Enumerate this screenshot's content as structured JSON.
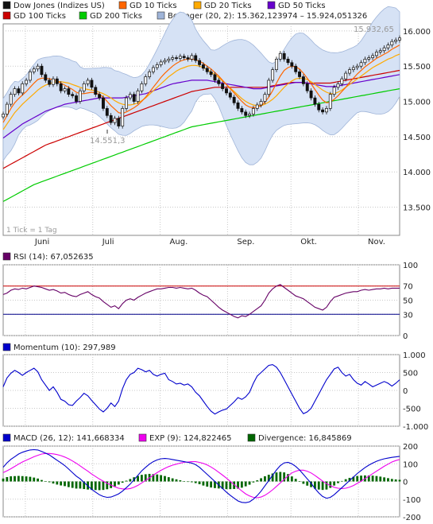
{
  "colors": {
    "price": "#111111",
    "gd10": "#ff6600",
    "gd20": "#ffaa00",
    "gd50": "#6600cc",
    "gd100": "#cc0000",
    "gd200": "#00cc00",
    "bollinger_fill": "#d6e2f5",
    "bollinger_line": "#9fb4d8",
    "rsi": "#660066",
    "momentum": "#0000cc",
    "macd": "#0000cc",
    "exp": "#ee00ee",
    "divergence": "#006600",
    "grid": "#c8c8c8",
    "rsi_70": "#cc0000",
    "rsi_30": "#000088"
  },
  "chart_data": [
    {
      "type": "line",
      "panel": "price",
      "legend": [
        {
          "label": "Dow Jones (Indizes US)",
          "color": "#111111"
        },
        {
          "label": "GD 10 Ticks",
          "color": "#ff6600"
        },
        {
          "label": "GD 20 Ticks",
          "color": "#ffaa00"
        },
        {
          "label": "GD 50 Ticks",
          "color": "#6600cc"
        },
        {
          "label": "GD 100 Ticks",
          "color": "#cc0000"
        },
        {
          "label": "GD 200 Ticks",
          "color": "#00cc00"
        },
        {
          "label": "Bollinger (20, 2): 15.362,123974 – 15.924,051326",
          "color": "#9fb4d8"
        }
      ],
      "months": [
        "Juni",
        "Juli",
        "Aug.",
        "Sep.",
        "Okt.",
        "Nov."
      ],
      "month_positions": [
        0.1,
        0.27,
        0.44,
        0.61,
        0.77,
        0.94
      ],
      "yticks": [
        "16.000",
        "15.500",
        "15.000",
        "14.500",
        "14.000",
        "13.500"
      ],
      "ylim": [
        13100,
        16100
      ],
      "annotations": {
        "high": "15.932,65",
        "low": "14.551,3",
        "tick_note": "1 Tick = 1 Tag"
      },
      "close": [
        14820,
        14960,
        15100,
        15180,
        15120,
        15250,
        15300,
        15420,
        15460,
        15500,
        15380,
        15300,
        15240,
        15320,
        15250,
        15150,
        15180,
        15100,
        15080,
        15000,
        15150,
        15250,
        15300,
        15200,
        15100,
        15050,
        14900,
        14800,
        14700,
        14760,
        14650,
        14900,
        15050,
        15100,
        15000,
        15150,
        15250,
        15350,
        15420,
        15480,
        15520,
        15560,
        15580,
        15600,
        15620,
        15610,
        15640,
        15620,
        15600,
        15650,
        15580,
        15520,
        15470,
        15420,
        15380,
        15300,
        15250,
        15180,
        15120,
        15060,
        14980,
        14900,
        14850,
        14800,
        14820,
        14900,
        14950,
        15000,
        15100,
        15300,
        15450,
        15600,
        15680,
        15600,
        15550,
        15500,
        15420,
        15350,
        15250,
        15150,
        15050,
        14960,
        14880,
        14850,
        14900,
        15100,
        15200,
        15250,
        15320,
        15400,
        15450,
        15480,
        15500,
        15550,
        15600,
        15620,
        15650,
        15700,
        15720,
        15760,
        15800,
        15850,
        15870,
        15900
      ],
      "ma10": [
        14700,
        14800,
        14900,
        14980,
        15040,
        15090,
        15140,
        15200,
        15260,
        15310,
        15330,
        15330,
        15320,
        15310,
        15290,
        15260,
        15230,
        15200,
        15170,
        15130,
        15110,
        15110,
        15120,
        15130,
        15120,
        15100,
        15060,
        15000,
        14940,
        14890,
        14840,
        14830,
        14850,
        14880,
        14910,
        14950,
        15000,
        15060,
        15130,
        15200,
        15270,
        15340,
        15400,
        15450,
        15500,
        15540,
        15570,
        15590,
        15600,
        15600,
        15590,
        15570,
        15540,
        15500,
        15460,
        15410,
        15360,
        15300,
        15240,
        15180,
        15120,
        15060,
        15000,
        14950,
        14920,
        14910,
        14920,
        14940,
        14990,
        15060,
        15150,
        15260,
        15360,
        15440,
        15480,
        15500,
        15490,
        15460,
        15400,
        15330,
        15250,
        15170,
        15090,
        15020,
        14980,
        14990,
        15030,
        15080,
        15140,
        15200,
        15270,
        15330,
        15390,
        15440,
        15490,
        15530,
        15570,
        15610,
        15640,
        15670,
        15700,
        15740,
        15770,
        15800
      ],
      "ma20": [
        14600,
        14680,
        14760,
        14840,
        14900,
        14960,
        15010,
        15060,
        15110,
        15160,
        15200,
        15230,
        15250,
        15270,
        15280,
        15280,
        15270,
        15260,
        15240,
        15220,
        15200,
        15180,
        15170,
        15160,
        15150,
        15130,
        15110,
        15080,
        15050,
        15010,
        14980,
        14960,
        14950,
        14950,
        14960,
        14980,
        15010,
        15050,
        15100,
        15150,
        15200,
        15250,
        15300,
        15350,
        15390,
        15430,
        15460,
        15480,
        15500,
        15510,
        15510,
        15500,
        15480,
        15450,
        15420,
        15380,
        15340,
        15290,
        15240,
        15190,
        15140,
        15090,
        15040,
        15000,
        14970,
        14950,
        14940,
        14940,
        14960,
        14990,
        15030,
        15080,
        15140,
        15200,
        15250,
        15290,
        15320,
        15330,
        15330,
        15310,
        15280,
        15240,
        15200,
        15160,
        15130,
        15110,
        15110,
        15130,
        15160,
        15200,
        15240,
        15280,
        15320,
        15360,
        15400,
        15440,
        15480,
        15510,
        15540,
        15570,
        15600,
        15620,
        15650,
        15670
      ],
      "ma50": [
        14480,
        14520,
        14560,
        14600,
        14640,
        14680,
        14710,
        14740,
        14770,
        14800,
        14830,
        14860,
        14880,
        14900,
        14920,
        14940,
        14960,
        14970,
        14980,
        14990,
        15000,
        15010,
        15020,
        15030,
        15040,
        15050,
        15050,
        15050,
        15050,
        15050,
        15050,
        15050,
        15060,
        15070,
        15080,
        15090,
        15100,
        15110,
        15130,
        15150,
        15170,
        15190,
        15210,
        15230,
        15250,
        15260,
        15270,
        15280,
        15290,
        15300,
        15300,
        15300,
        15300,
        15300,
        15290,
        15280,
        15270,
        15260,
        15250,
        15240,
        15230,
        15220,
        15210,
        15200,
        15190,
        15180,
        15180,
        15180,
        15190,
        15200,
        15210,
        15220,
        15230,
        15240,
        15250,
        15260,
        15270,
        15270,
        15270,
        15260,
        15250,
        15240,
        15230,
        15220,
        15210,
        15210,
        15210,
        15220,
        15230,
        15240,
        15250,
        15260,
        15270,
        15280,
        15290,
        15300,
        15310,
        15320,
        15330,
        15340,
        15350,
        15360,
        15370,
        15380
      ],
      "ma100": [
        14050,
        14080,
        14110,
        14140,
        14170,
        14200,
        14230,
        14260,
        14290,
        14320,
        14350,
        14380,
        14400,
        14420,
        14440,
        14460,
        14480,
        14500,
        14520,
        14540,
        14560,
        14580,
        14600,
        14620,
        14640,
        14660,
        14680,
        14700,
        14720,
        14740,
        14760,
        14780,
        14800,
        14820,
        14840,
        14860,
        14880,
        14900,
        14920,
        14940,
        14960,
        14980,
        15000,
        15020,
        15040,
        15060,
        15080,
        15100,
        15120,
        15140,
        15150,
        15160,
        15170,
        15180,
        15190,
        15200,
        15200,
        15200,
        15200,
        15200,
        15200,
        15200,
        15200,
        15200,
        15200,
        15200,
        15200,
        15200,
        15200,
        15210,
        15220,
        15230,
        15240,
        15250,
        15260,
        15270,
        15270,
        15270,
        15270,
        15260,
        15260,
        15260,
        15260,
        15260,
        15260,
        15260,
        15270,
        15280,
        15290,
        15300,
        15310,
        15320,
        15330,
        15340,
        15350,
        15360,
        15370,
        15380,
        15390,
        15400,
        15410,
        15420,
        15430,
        15440
      ],
      "ma200": [
        13580,
        13610,
        13640,
        13670,
        13700,
        13730,
        13760,
        13790,
        13820,
        13840,
        13860,
        13880,
        13900,
        13920,
        13940,
        13960,
        13980,
        14000,
        14020,
        14040,
        14060,
        14080,
        14100,
        14120,
        14140,
        14160,
        14180,
        14200,
        14220,
        14240,
        14260,
        14280,
        14300,
        14320,
        14340,
        14360,
        14380,
        14400,
        14420,
        14440,
        14460,
        14480,
        14500,
        14520,
        14540,
        14560,
        14580,
        14600,
        14620,
        14640,
        14650,
        14660,
        14670,
        14680,
        14690,
        14700,
        14710,
        14720,
        14730,
        14740,
        14750,
        14760,
        14770,
        14780,
        14790,
        14800,
        14810,
        14820,
        14830,
        14840,
        14850,
        14860,
        14870,
        14880,
        14890,
        14900,
        14910,
        14920,
        14930,
        14940,
        14950,
        14960,
        14970,
        14980,
        14990,
        15000,
        15010,
        15020,
        15030,
        15040,
        15050,
        15060,
        15070,
        15080,
        15090,
        15100,
        15110,
        15120,
        15130,
        15140,
        15150,
        15160,
        15170,
        15180
      ]
    },
    {
      "type": "line",
      "panel": "rsi",
      "legend": [
        {
          "label": "RSI (14): 67,052635",
          "color": "#660066"
        }
      ],
      "ylim": [
        0,
        100
      ],
      "yticks": [
        "100",
        "70",
        "50",
        "30",
        "0"
      ],
      "levels": [
        70,
        30
      ],
      "values": [
        58,
        60,
        64,
        66,
        65,
        67,
        66,
        68,
        70,
        69,
        68,
        66,
        64,
        65,
        63,
        60,
        61,
        58,
        56,
        55,
        58,
        60,
        62,
        58,
        55,
        53,
        48,
        44,
        40,
        42,
        38,
        45,
        50,
        52,
        50,
        54,
        57,
        60,
        62,
        64,
        66,
        66,
        67,
        68,
        68,
        67,
        68,
        67,
        66,
        67,
        64,
        60,
        57,
        55,
        50,
        45,
        40,
        36,
        33,
        30,
        27,
        25,
        28,
        27,
        30,
        34,
        38,
        42,
        50,
        60,
        66,
        70,
        72,
        68,
        64,
        60,
        56,
        54,
        52,
        48,
        44,
        40,
        38,
        36,
        40,
        48,
        54,
        56,
        58,
        60,
        61,
        62,
        62,
        64,
        65,
        64,
        65,
        66,
        66,
        67,
        66,
        67,
        67,
        67
      ]
    },
    {
      "type": "line",
      "panel": "momentum",
      "legend": [
        {
          "label": "Momentum (10): 297,989",
          "color": "#0000cc"
        }
      ],
      "ylim": [
        -1000,
        1000
      ],
      "yticks": [
        "1.000",
        "500",
        "0",
        "-500",
        "-1.000"
      ],
      "values": [
        100,
        350,
        480,
        560,
        500,
        420,
        500,
        560,
        620,
        520,
        300,
        150,
        0,
        100,
        -50,
        -250,
        -300,
        -400,
        -420,
        -300,
        -200,
        -80,
        -150,
        -280,
        -400,
        -520,
        -600,
        -500,
        -350,
        -450,
        -300,
        50,
        300,
        450,
        500,
        620,
        580,
        520,
        560,
        450,
        400,
        450,
        480,
        300,
        250,
        180,
        200,
        150,
        180,
        100,
        -50,
        -150,
        -300,
        -450,
        -580,
        -660,
        -600,
        -550,
        -520,
        -420,
        -320,
        -200,
        -250,
        -180,
        -50,
        200,
        400,
        500,
        600,
        700,
        720,
        650,
        500,
        300,
        100,
        -100,
        -300,
        -500,
        -650,
        -600,
        -500,
        -300,
        -100,
        100,
        300,
        450,
        600,
        650,
        500,
        400,
        450,
        300,
        200,
        150,
        250,
        180,
        100,
        150,
        200,
        250,
        200,
        120,
        200,
        298
      ]
    },
    {
      "type": "line",
      "panel": "macd",
      "legend": [
        {
          "label": "MACD (26, 12): 141,668334",
          "color": "#0000cc"
        },
        {
          "label": "EXP (9): 124,822465",
          "color": "#ee00ee"
        },
        {
          "label": "Divergence: 16,845869",
          "color": "#006600"
        }
      ],
      "ylim": [
        -200,
        200
      ],
      "yticks": [
        "200",
        "100",
        "0",
        "-100",
        "-200"
      ],
      "macd": [
        80,
        105,
        125,
        140,
        155,
        165,
        172,
        178,
        180,
        178,
        170,
        160,
        150,
        135,
        120,
        105,
        90,
        70,
        50,
        30,
        15,
        -5,
        -25,
        -45,
        -60,
        -75,
        -85,
        -90,
        -88,
        -80,
        -70,
        -55,
        -35,
        -15,
        10,
        35,
        60,
        80,
        98,
        112,
        122,
        128,
        130,
        128,
        124,
        120,
        116,
        112,
        108,
        104,
        95,
        80,
        60,
        40,
        20,
        0,
        -20,
        -40,
        -60,
        -78,
        -95,
        -110,
        -118,
        -120,
        -115,
        -100,
        -80,
        -55,
        -25,
        5,
        35,
        65,
        90,
        105,
        108,
        100,
        85,
        65,
        40,
        15,
        -10,
        -40,
        -65,
        -85,
        -95,
        -90,
        -75,
        -55,
        -35,
        -15,
        5,
        25,
        45,
        62,
        78,
        92,
        104,
        114,
        122,
        128,
        132,
        136,
        139,
        142
      ],
      "exp": [
        50,
        60,
        72,
        85,
        98,
        110,
        120,
        130,
        140,
        148,
        155,
        158,
        158,
        156,
        152,
        146,
        138,
        128,
        116,
        103,
        88,
        73,
        58,
        42,
        28,
        14,
        2,
        -10,
        -20,
        -30,
        -38,
        -42,
        -43,
        -40,
        -33,
        -22,
        -8,
        6,
        20,
        36,
        50,
        63,
        74,
        84,
        92,
        98,
        104,
        108,
        110,
        112,
        112,
        108,
        102,
        93,
        82,
        68,
        52,
        36,
        19,
        1,
        -18,
        -36,
        -54,
        -70,
        -82,
        -90,
        -92,
        -88,
        -78,
        -64,
        -47,
        -28,
        -8,
        12,
        32,
        48,
        58,
        64,
        64,
        58,
        48,
        34,
        18,
        2,
        -12,
        -24,
        -33,
        -38,
        -40,
        -38,
        -32,
        -23,
        -11,
        2,
        16,
        30,
        44,
        58,
        72,
        86,
        98,
        110,
        118,
        124
      ],
      "divergence": [
        30,
        45,
        53,
        55,
        57,
        55,
        52,
        48,
        40,
        30,
        15,
        2,
        -8,
        -21,
        -32,
        -41,
        -48,
        -58,
        -66,
        -73,
        -73,
        -78,
        -83,
        -87,
        -88,
        -89,
        -87,
        -80,
        -68,
        -50,
        -32,
        -13,
        8,
        25,
        43,
        57,
        68,
        74,
        78,
        76,
        72,
        65,
        56,
        44,
        32,
        22,
        12,
        4,
        -2,
        -8,
        -17,
        -28,
        -42,
        -53,
        -62,
        -68,
        -72,
        -76,
        -79,
        -79,
        -77,
        -74,
        -64,
        -50,
        -33,
        -10,
        12,
        33,
        53,
        69,
        82,
        93,
        98,
        93,
        76,
        52,
        27,
        1,
        -24,
        -43,
        -58,
        -74,
        -83,
        -87,
        -83,
        -66,
        -42,
        -17,
        5,
        23,
        37,
        48,
        56,
        60,
        62,
        62,
        60,
        56,
        50,
        42,
        34,
        26,
        21,
        17
      ]
    }
  ]
}
